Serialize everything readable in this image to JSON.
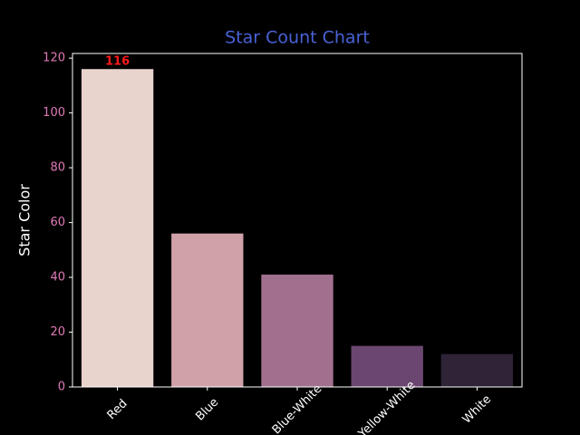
{
  "chart_data": {
    "type": "bar",
    "title": "Star Count Chart",
    "ylabel": "Star Color",
    "categories": [
      "Red",
      "Blue",
      "Blue-White",
      "Yellow-White",
      "White"
    ],
    "values": [
      116,
      56,
      41,
      15,
      12
    ],
    "colors": [
      "#e8d3cd",
      "#d1a1a9",
      "#a2708f",
      "#6b4670",
      "#2f2338"
    ],
    "ylim": [
      0,
      121.7
    ],
    "yticks": [
      0,
      20,
      40,
      60,
      80,
      100,
      120
    ],
    "label_max": true,
    "value_label_color": "#ff1a1a",
    "title_color": "#4a62d6",
    "ytick_color": "#e07ab8",
    "grid": false
  }
}
